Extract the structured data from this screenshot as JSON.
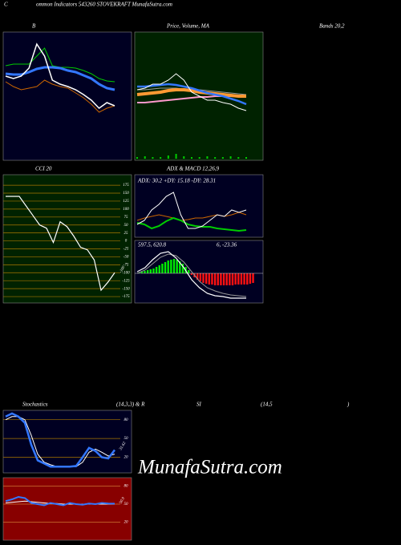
{
  "header": {
    "letter": "C",
    "title": "ommon Indicators 543260 STOVEKRAFT MunafaSutra.com"
  },
  "watermark": "MunafaSutra.com",
  "chart_data": [
    {
      "type": "line",
      "title_parts": [
        "B",
        "Bands 20,2"
      ],
      "background": "#000022",
      "ylim": [
        0,
        160
      ],
      "series": [
        {
          "color": "#00cc00",
          "width": 1,
          "values": [
            118,
            120,
            120,
            120,
            130,
            140,
            118,
            116,
            116,
            115,
            112,
            108,
            102,
            99,
            98
          ]
        },
        {
          "color": "#3377ff",
          "width": 3,
          "values": [
            108,
            107,
            107,
            110,
            114,
            116,
            116,
            115,
            112,
            110,
            106,
            102,
            95,
            90,
            88
          ]
        },
        {
          "color": "#cc6600",
          "width": 1,
          "values": [
            98,
            92,
            88,
            90,
            92,
            100,
            95,
            92,
            90,
            84,
            78,
            70,
            60,
            65,
            68
          ]
        },
        {
          "color": "#ffffff",
          "width": 1.5,
          "values": [
            105,
            102,
            105,
            115,
            145,
            130,
            100,
            95,
            92,
            88,
            82,
            75,
            65,
            72,
            68
          ]
        }
      ]
    },
    {
      "type": "line",
      "title_parts": [
        "Price, Volume, MA"
      ],
      "background": "#002200",
      "ylim": [
        0,
        160
      ],
      "volume": [
        2,
        3,
        2,
        2,
        4,
        6,
        3,
        2,
        2,
        3,
        2,
        2,
        3,
        2,
        2
      ],
      "volume_color": "#00cc00",
      "series": [
        {
          "color": "#999999",
          "width": 1,
          "values": [
            88,
            88,
            89,
            90,
            90,
            90,
            89,
            88,
            88,
            87,
            86,
            85,
            84,
            83,
            82
          ]
        },
        {
          "color": "#ff99cc",
          "width": 2,
          "values": [
            72,
            72,
            73,
            74,
            75,
            76,
            77,
            78,
            79,
            79,
            80,
            80,
            80,
            81,
            81
          ]
        },
        {
          "color": "#ff9933",
          "width": 4,
          "values": [
            82,
            83,
            84,
            85,
            87,
            88,
            88,
            87,
            85,
            84,
            83,
            82,
            81,
            80,
            80
          ]
        },
        {
          "color": "#3377ff",
          "width": 2.5,
          "values": [
            92,
            92,
            93,
            94,
            95,
            94,
            92,
            90,
            87,
            84,
            82,
            80,
            77,
            74,
            70
          ]
        },
        {
          "color": "#ffffff",
          "width": 1,
          "values": [
            88,
            90,
            95,
            95,
            100,
            108,
            100,
            85,
            80,
            75,
            75,
            72,
            70,
            65,
            62
          ]
        }
      ]
    },
    {
      "type": "line",
      "title_parts": [
        "CCI 20"
      ],
      "background": "#002200",
      "ylim": [
        -195,
        208
      ],
      "yticks": [
        175,
        150,
        125,
        100,
        75,
        50,
        25,
        0,
        -25,
        -50,
        -75,
        -100,
        -125,
        -150,
        -175
      ],
      "grid_color": "#aa7700",
      "series": [
        {
          "color": "#ffffff",
          "width": 1.2,
          "values": [
            140,
            140,
            140,
            110,
            80,
            50,
            40,
            -5,
            60,
            45,
            15,
            -20,
            -28,
            -60,
            -155,
            -130,
            -100
          ],
          "last_label": "-100"
        }
      ]
    },
    {
      "type": "line",
      "title_parts": [
        "ADX  & MACD 12,26,9"
      ],
      "info": [
        "ADX: 30.2  +DY: 15.18  -DY: 28.31"
      ],
      "background": "#000022",
      "ylim": [
        0,
        78
      ],
      "series": [
        {
          "color": "#cc6600",
          "width": 1,
          "values": [
            21,
            24,
            26,
            28,
            26,
            24,
            21,
            22,
            24,
            24,
            26,
            28,
            26,
            28,
            31,
            28
          ]
        },
        {
          "color": "#00cc00",
          "width": 2,
          "values": [
            18,
            16,
            11,
            14,
            20,
            24,
            21,
            16,
            14,
            13,
            13,
            11,
            10,
            9,
            8,
            9
          ]
        },
        {
          "color": "#ffffff",
          "width": 1,
          "values": [
            16,
            21,
            34,
            41,
            51,
            56,
            28,
            11,
            11,
            14,
            21,
            28,
            26,
            34,
            31,
            34
          ]
        }
      ]
    },
    {
      "type": "bar",
      "info": [
        "597.5,   620.8",
        "6, -23.36"
      ],
      "background": "#000022",
      "ylim": [
        -37,
        41
      ],
      "bars": [
        1,
        2,
        3,
        4,
        5,
        6,
        8,
        10,
        12,
        14,
        16,
        17,
        18,
        17,
        15,
        12,
        8,
        4,
        -2,
        -5,
        -8,
        -10,
        -12,
        -13,
        -14,
        -14,
        -15,
        -15,
        -15,
        -15,
        -15,
        -15,
        -15,
        -14,
        -14,
        -14,
        -14,
        -14,
        -13,
        -12
      ],
      "up_color": "#00ee00",
      "down_color": "#ff1111",
      "series": [
        {
          "color": "#999999",
          "width": 1,
          "values": [
            0,
            4,
            12,
            20,
            24,
            22,
            14,
            2,
            -10,
            -18,
            -22,
            -25,
            -27,
            -28,
            -29
          ]
        },
        {
          "color": "#ffffff",
          "width": 1.2,
          "values": [
            2,
            7,
            17,
            25,
            27,
            19,
            7,
            -8,
            -18,
            -25,
            -28,
            -29,
            -31,
            -31,
            -31
          ]
        }
      ]
    },
    {
      "type": "line",
      "title_parts": [
        "Stochastics",
        "(14,3,3) & R"
      ],
      "background": "#000022",
      "ylim": [
        -5,
        95
      ],
      "yticks": [
        80,
        50,
        20
      ],
      "grid_color": "#aa7700",
      "series": [
        {
          "color": "#ffffff",
          "width": 1,
          "values": [
            80,
            85,
            85,
            80,
            55,
            25,
            12,
            8,
            5,
            5,
            5,
            5,
            12,
            28,
            33,
            28,
            22,
            25
          ]
        },
        {
          "color": "#3377ff",
          "width": 2.5,
          "values": [
            85,
            90,
            85,
            75,
            40,
            15,
            10,
            5,
            5,
            5,
            5,
            6,
            20,
            35,
            30,
            20,
            18,
            31.62
          ],
          "last_label": "31.62"
        }
      ]
    },
    {
      "type": "line",
      "title_parts": [
        "SI",
        "(14,5",
        ")"
      ],
      "background": "#880000",
      "ylim": [
        -10,
        94
      ],
      "yticks": [
        80,
        50,
        20
      ],
      "grid_color": "#cc7733",
      "series": [
        {
          "color": "#ffffff",
          "width": 1,
          "values": [
            52,
            53,
            54,
            55,
            54,
            53,
            52,
            51,
            51,
            50,
            50,
            50,
            50,
            50,
            50,
            50,
            50,
            50
          ]
        },
        {
          "color": "#3377ff",
          "width": 2,
          "values": [
            55,
            58,
            62,
            60,
            52,
            50,
            48,
            52,
            50,
            48,
            52,
            50,
            49,
            51,
            50,
            52,
            51,
            50.9
          ],
          "last_label": "50.9"
        }
      ]
    }
  ]
}
